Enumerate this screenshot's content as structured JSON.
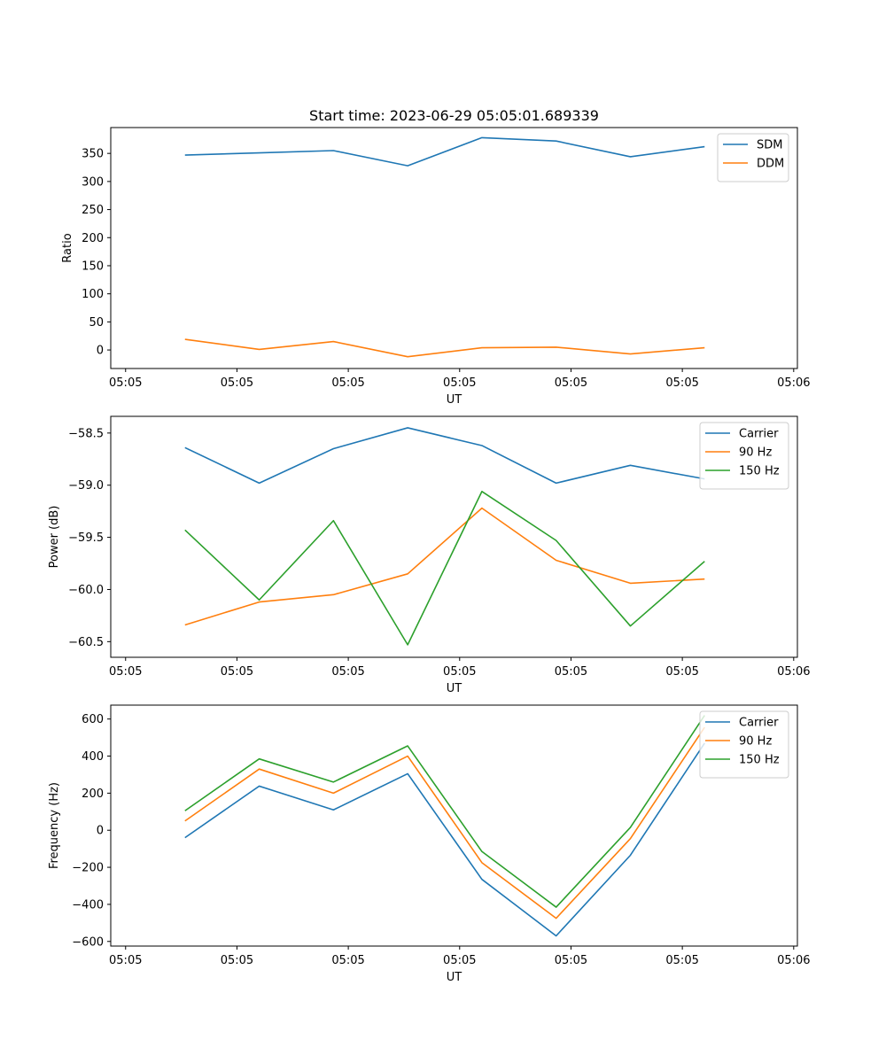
{
  "figure": {
    "title": "Start time: 2023-06-29 05:05:01.689339"
  },
  "chart_data": [
    {
      "type": "line",
      "title": "Start time: 2023-06-29 05:05:01.689339",
      "xlabel": "UT",
      "ylabel": "Ratio",
      "x": [
        1,
        2,
        3,
        4,
        5,
        6,
        7,
        8
      ],
      "xticks": [
        {
          "value": 0.2,
          "label": "05:05"
        },
        {
          "value": 1.7,
          "label": "05:05"
        },
        {
          "value": 3.2,
          "label": "05:05"
        },
        {
          "value": 4.7,
          "label": "05:05"
        },
        {
          "value": 6.2,
          "label": "05:05"
        },
        {
          "value": 7.7,
          "label": "05:05"
        },
        {
          "value": 9.2,
          "label": "05:06"
        }
      ],
      "xlim": [
        0,
        9.25
      ],
      "yticks": [
        0,
        50,
        100,
        150,
        200,
        250,
        300,
        350
      ],
      "ylim": [
        -33,
        396
      ],
      "grid": false,
      "legend": "upper right",
      "series": [
        {
          "name": "SDM",
          "color": "#1f77b4",
          "values": [
            347,
            351,
            355,
            328,
            378,
            372,
            344,
            362
          ]
        },
        {
          "name": "DDM",
          "color": "#ff7f0e",
          "values": [
            19,
            1,
            15,
            -12,
            4,
            5,
            -7,
            4
          ]
        }
      ]
    },
    {
      "type": "line",
      "title": "",
      "xlabel": "UT",
      "ylabel": "Power (dB)",
      "x": [
        1,
        2,
        3,
        4,
        5,
        6,
        7,
        8
      ],
      "xticks": [
        {
          "value": 0.2,
          "label": "05:05"
        },
        {
          "value": 1.7,
          "label": "05:05"
        },
        {
          "value": 3.2,
          "label": "05:05"
        },
        {
          "value": 4.7,
          "label": "05:05"
        },
        {
          "value": 6.2,
          "label": "05:05"
        },
        {
          "value": 7.7,
          "label": "05:05"
        },
        {
          "value": 9.2,
          "label": "05:06"
        }
      ],
      "xlim": [
        0,
        9.25
      ],
      "yticks": [
        -58.5,
        -59.0,
        -59.5,
        -60.0,
        -60.5
      ],
      "yticklabels": [
        "−58.5",
        "−59.0",
        "−59.5",
        "−60.0",
        "−60.5"
      ],
      "ylim": [
        -60.65,
        -58.34
      ],
      "grid": false,
      "legend": "upper right",
      "series": [
        {
          "name": "Carrier",
          "color": "#1f77b4",
          "values": [
            -58.64,
            -58.98,
            -58.65,
            -58.45,
            -58.62,
            -58.98,
            -58.81,
            -58.94
          ]
        },
        {
          "name": "90 Hz",
          "color": "#ff7f0e",
          "values": [
            -60.34,
            -60.12,
            -60.05,
            -59.85,
            -59.22,
            -59.72,
            -59.94,
            -59.9
          ]
        },
        {
          "name": "150 Hz",
          "color": "#2ca02c",
          "values": [
            -59.43,
            -60.1,
            -59.34,
            -60.53,
            -59.06,
            -59.53,
            -60.35,
            -59.73
          ]
        }
      ]
    },
    {
      "type": "line",
      "title": "",
      "xlabel": "UT",
      "ylabel": "Frequency (Hz)",
      "x": [
        1,
        2,
        3,
        4,
        5,
        6,
        7,
        8
      ],
      "xticks": [
        {
          "value": 0.2,
          "label": "05:05"
        },
        {
          "value": 1.7,
          "label": "05:05"
        },
        {
          "value": 3.2,
          "label": "05:05"
        },
        {
          "value": 4.7,
          "label": "05:05"
        },
        {
          "value": 6.2,
          "label": "05:05"
        },
        {
          "value": 7.7,
          "label": "05:05"
        },
        {
          "value": 9.2,
          "label": "05:06"
        }
      ],
      "xlim": [
        0,
        9.25
      ],
      "yticks": [
        -600,
        -400,
        -200,
        0,
        200,
        400,
        600
      ],
      "yticklabels": [
        "−600",
        "−400",
        "−200",
        "0",
        "200",
        "400",
        "600"
      ],
      "ylim": [
        -625,
        675
      ],
      "grid": false,
      "legend": "upper right",
      "series": [
        {
          "name": "Carrier",
          "color": "#1f77b4",
          "values": [
            -40,
            238,
            110,
            305,
            -265,
            -570,
            -135,
            470
          ]
        },
        {
          "name": "90 Hz",
          "color": "#ff7f0e",
          "values": [
            50,
            330,
            200,
            400,
            -175,
            -475,
            -45,
            555
          ]
        },
        {
          "name": "150 Hz",
          "color": "#2ca02c",
          "values": [
            105,
            385,
            260,
            455,
            -115,
            -415,
            15,
            620
          ]
        }
      ]
    }
  ]
}
